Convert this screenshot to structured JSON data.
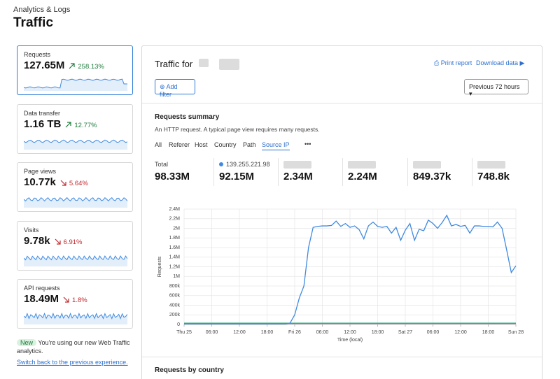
{
  "header": {
    "breadcrumb": "Analytics & Logs",
    "title": "Traffic"
  },
  "cards": [
    {
      "label": "Requests",
      "value": "127.65M",
      "change": "258.13%",
      "direction": "up"
    },
    {
      "label": "Data transfer",
      "value": "1.16 TB",
      "change": "12.77%",
      "direction": "up"
    },
    {
      "label": "Page views",
      "value": "10.77k",
      "change": "5.64%",
      "direction": "down"
    },
    {
      "label": "Visits",
      "value": "9.78k",
      "change": "6.91%",
      "direction": "down"
    },
    {
      "label": "API requests",
      "value": "18.49M",
      "change": "1.8%",
      "direction": "down"
    }
  ],
  "notice": {
    "badge": "New",
    "text": "You're using our new Web Traffic analytics.",
    "link": "Switch back to the previous experience."
  },
  "main": {
    "title": "Traffic for",
    "print": "Print report",
    "download": "Download data",
    "add_filter": "Add filter",
    "period": "Previous 72 hours"
  },
  "summary": {
    "title": "Requests summary",
    "description": "An HTTP request. A typical page view requires many requests.",
    "tabs": [
      "All",
      "Referer",
      "Host",
      "Country",
      "Path",
      "Source IP"
    ],
    "active_tab": 5,
    "stats": [
      {
        "label": "Total",
        "value": "98.33M"
      },
      {
        "label": "139.255.221.98",
        "value": "92.15M"
      },
      {
        "value": "2.34M"
      },
      {
        "value": "2.24M"
      },
      {
        "value": "849.37k"
      },
      {
        "value": "748.8k"
      }
    ]
  },
  "chart_data": {
    "type": "line",
    "ylabel": "Requests",
    "xlabel": "Time (local)",
    "grid": true,
    "xlim": [
      0,
      72
    ],
    "xticks": [
      {
        "value": 0,
        "label": "Thu 25"
      },
      {
        "value": 6,
        "label": "06:00"
      },
      {
        "value": 12,
        "label": "12:00"
      },
      {
        "value": 18,
        "label": "18:00"
      },
      {
        "value": 24,
        "label": "Fri 26"
      },
      {
        "value": 30,
        "label": "06:00"
      },
      {
        "value": 36,
        "label": "12:00"
      },
      {
        "value": 42,
        "label": "18:00"
      },
      {
        "value": 48,
        "label": "Sat 27"
      },
      {
        "value": 54,
        "label": "06:00"
      },
      {
        "value": 60,
        "label": "12:00"
      },
      {
        "value": 66,
        "label": "18:00"
      },
      {
        "value": 72,
        "label": "Sun 28"
      }
    ],
    "ylim": [
      0,
      2400000
    ],
    "yticks": [
      0,
      {
        "value": 200000,
        "label": "200k"
      },
      {
        "value": 400000,
        "label": "400k"
      },
      {
        "value": 600000,
        "label": "600k"
      },
      {
        "value": 800000,
        "label": "800k"
      },
      {
        "value": 1000000,
        "label": "1M"
      },
      {
        "value": 1200000,
        "label": "1.2M"
      },
      {
        "value": 1400000,
        "label": "1.4M"
      },
      {
        "value": 1600000,
        "label": "1.6M"
      },
      {
        "value": 1800000,
        "label": "1.8M"
      },
      {
        "value": 2000000,
        "label": "2M"
      },
      {
        "value": 2200000,
        "label": "2.2M"
      },
      {
        "value": 2400000,
        "label": "2.4M"
      }
    ],
    "x": [
      0,
      1,
      2,
      3,
      4,
      5,
      6,
      7,
      8,
      9,
      10,
      11,
      12,
      13,
      14,
      15,
      16,
      17,
      18,
      19,
      20,
      21,
      22,
      23,
      24,
      25,
      26,
      27,
      28,
      29,
      30,
      31,
      32,
      33,
      34,
      35,
      36,
      37,
      38,
      39,
      40,
      41,
      42,
      43,
      44,
      45,
      46,
      47,
      48,
      49,
      50,
      51,
      52,
      53,
      54,
      55,
      56,
      57,
      58,
      59,
      60,
      61,
      62,
      63,
      64,
      65,
      66,
      67,
      68,
      69,
      70,
      71,
      72
    ],
    "series": [
      {
        "color": "#3f8ae0",
        "values": [
          15000,
          15000,
          15000,
          15000,
          15000,
          15000,
          15000,
          15000,
          15000,
          15000,
          15000,
          15000,
          15000,
          15000,
          15000,
          15000,
          15000,
          15000,
          15000,
          15000,
          15000,
          15000,
          15000,
          30000,
          200000,
          550000,
          800000,
          1600000,
          2020000,
          2040000,
          2050000,
          2050000,
          2060000,
          2150000,
          2040000,
          2100000,
          2020000,
          2050000,
          1970000,
          1780000,
          2050000,
          2130000,
          2040000,
          2020000,
          2040000,
          1900000,
          2020000,
          1750000,
          1960000,
          2100000,
          1750000,
          1980000,
          1950000,
          2170000,
          2100000,
          2000000,
          2120000,
          2270000,
          2050000,
          2080000,
          2040000,
          2060000,
          1900000,
          2050000,
          2050000,
          2040000,
          2040000,
          2030000,
          2130000,
          2000000,
          1550000,
          1080000,
          1220000
        ]
      },
      {
        "color": "#1fae7e",
        "values": [
          30000,
          30000,
          30000,
          30000,
          30000,
          30000,
          30000,
          30000,
          30000,
          30000,
          30000,
          30000,
          30000,
          30000,
          30000,
          30000,
          30000,
          30000,
          30000,
          30000,
          30000,
          30000,
          30000,
          30000,
          30000,
          30000,
          30000,
          30000,
          30000,
          30000,
          30000,
          30000,
          30000,
          30000,
          30000,
          30000,
          30000,
          30000,
          30000,
          30000,
          30000,
          30000,
          30000,
          30000,
          30000,
          30000,
          30000,
          30000,
          30000,
          30000,
          30000,
          30000,
          30000,
          30000,
          30000,
          30000,
          30000,
          30000,
          30000,
          30000,
          30000,
          30000,
          30000,
          30000,
          30000,
          30000,
          30000,
          30000,
          30000,
          30000,
          30000,
          30000,
          30000
        ]
      },
      {
        "color": "#a45ac8",
        "values": [
          20000,
          20000,
          20000,
          20000,
          20000,
          20000,
          20000,
          20000,
          20000,
          20000,
          20000,
          20000,
          20000,
          20000,
          20000,
          20000,
          20000,
          20000,
          20000,
          20000,
          20000,
          20000,
          20000,
          20000,
          20000,
          20000,
          20000,
          20000,
          20000,
          20000,
          20000,
          20000,
          20000,
          20000,
          20000,
          20000,
          20000,
          20000,
          20000,
          20000,
          20000,
          20000,
          20000,
          20000,
          20000,
          20000,
          20000,
          20000,
          20000,
          20000,
          20000,
          20000,
          20000,
          20000,
          20000,
          20000,
          20000,
          20000,
          20000,
          20000,
          20000,
          20000,
          20000,
          20000,
          20000,
          20000,
          20000,
          20000,
          20000,
          20000,
          20000,
          20000,
          20000
        ]
      }
    ]
  },
  "country": {
    "title": "Requests by country"
  }
}
